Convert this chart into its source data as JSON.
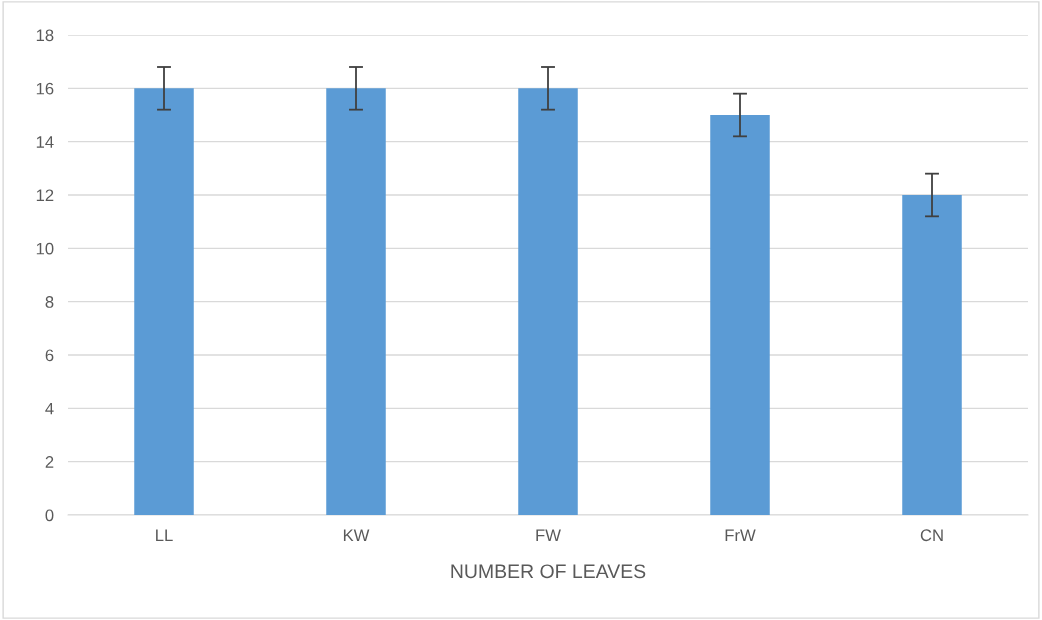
{
  "chart_data": {
    "type": "bar",
    "xlabel": "NUMBER OF LEAVES",
    "categories": [
      "LL",
      "KW",
      "FW",
      "FrW",
      "CN"
    ],
    "values": [
      16,
      16,
      16,
      15,
      12
    ],
    "errors": [
      0.8,
      0.8,
      0.8,
      0.8,
      0.8
    ],
    "color": "#5b9bd5",
    "ylim": [
      0,
      18
    ],
    "yticks": [
      0,
      2,
      4,
      6,
      8,
      10,
      12,
      14,
      16,
      18
    ],
    "grid": "y"
  }
}
